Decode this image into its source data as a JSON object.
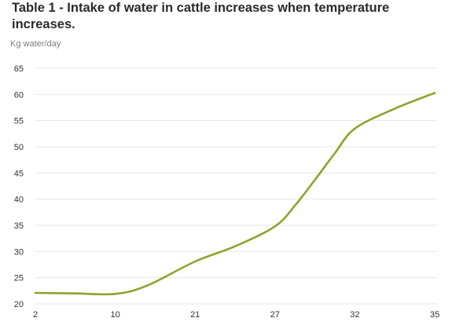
{
  "chart_data": {
    "type": "line",
    "title": "Table 1 - Intake of water in cattle increases when temperature increases.",
    "ylabel": "Kg water/day",
    "xlabel": "",
    "x_ticks": [
      "2",
      "10",
      "21",
      "27",
      "32",
      "35"
    ],
    "y_ticks": [
      "65",
      "60",
      "55",
      "50",
      "45",
      "40",
      "35",
      "30",
      "25",
      "20"
    ],
    "ylim": [
      20,
      65
    ],
    "grid": "horizontal",
    "legend": "none",
    "line_color": "#8da32c",
    "grid_color": "#e6e6e6",
    "series": [
      {
        "points": [
          {
            "x": 0,
            "y": 22.1
          },
          {
            "x": 0.5,
            "y": 22.0
          },
          {
            "x": 1,
            "y": 21.9
          },
          {
            "x": 1.4,
            "y": 23.5
          },
          {
            "x": 2,
            "y": 28.1
          },
          {
            "x": 2.5,
            "y": 31.0
          },
          {
            "x": 3,
            "y": 34.8
          },
          {
            "x": 3.25,
            "y": 38.8
          },
          {
            "x": 3.5,
            "y": 43.7
          },
          {
            "x": 3.75,
            "y": 48.8
          },
          {
            "x": 4,
            "y": 53.5
          },
          {
            "x": 4.5,
            "y": 57.3
          },
          {
            "x": 5,
            "y": 60.3
          }
        ]
      }
    ]
  }
}
